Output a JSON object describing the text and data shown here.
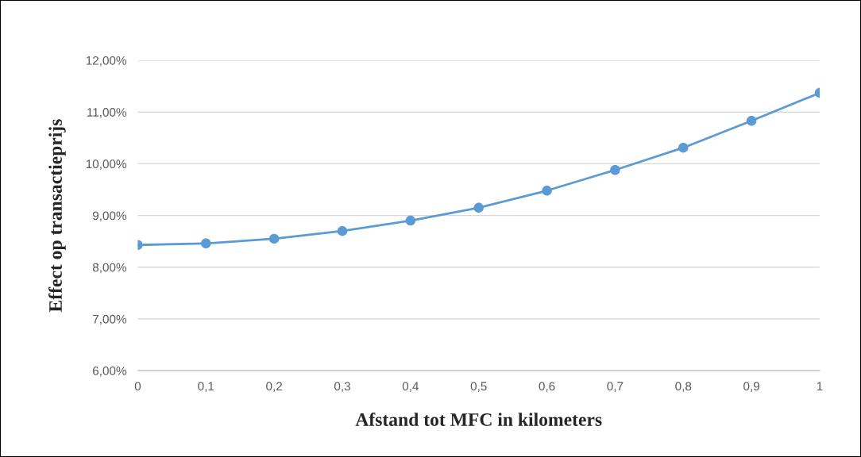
{
  "chart_data": {
    "type": "line",
    "xlabel": "Afstand tot MFC in kilometers",
    "ylabel": "Effect op transactieprijs",
    "x": [
      0,
      0.1,
      0.2,
      0.3,
      0.4,
      0.5,
      0.6,
      0.7,
      0.8,
      0.9,
      1
    ],
    "series": [
      {
        "color": "#5b9bd5",
        "values": [
          8.43,
          8.46,
          8.55,
          8.7,
          8.9,
          9.15,
          9.48,
          9.88,
          10.31,
          10.83,
          11.37
        ]
      }
    ],
    "xlim": [
      0,
      1
    ],
    "xticks": [
      0,
      {
        "value": 0.1,
        "label": "0,1"
      },
      {
        "value": 0.2,
        "label": "0,2"
      },
      {
        "value": 0.3,
        "label": "0,3"
      },
      {
        "value": 0.4,
        "label": "0,4"
      },
      {
        "value": 0.5,
        "label": "0,5"
      },
      {
        "value": 0.6,
        "label": "0,6"
      },
      {
        "value": 0.7,
        "label": "0,7"
      },
      {
        "value": 0.8,
        "label": "0,8"
      },
      {
        "value": 0.9,
        "label": "0,9"
      },
      1
    ],
    "ylim": [
      6,
      12
    ],
    "yticks": [
      {
        "value": 6,
        "label": "6,00%"
      },
      {
        "value": 7,
        "label": "7,00%"
      },
      {
        "value": 8,
        "label": "8,00%"
      },
      {
        "value": 9,
        "label": "9,00%"
      },
      {
        "value": 10,
        "label": "10,00%"
      },
      {
        "value": 11,
        "label": "11,00%"
      },
      {
        "value": 12,
        "label": "12,00%"
      }
    ],
    "grid": "y",
    "marker": "circle",
    "line_style": "solid"
  }
}
